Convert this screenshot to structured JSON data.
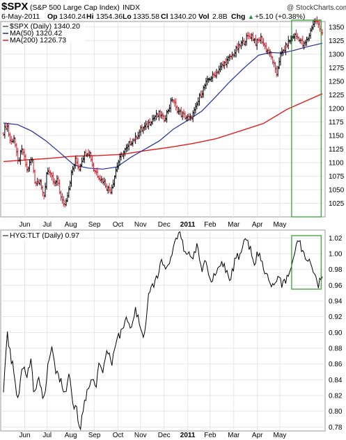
{
  "header": {
    "symbol": "$SPX",
    "name": "(S&P 500 Large Cap Index)",
    "exchange": "INDX",
    "date": "6-May-2011",
    "open_label": "Op",
    "open": "1340.24",
    "high_label": "Hi",
    "high": "1354.36",
    "low_label": "Lo",
    "low": "1335.58",
    "close_label": "Cl",
    "close": "1340.20",
    "volume_label": "Vol",
    "volume": "2.8B",
    "change_label": "Chg",
    "change": "+5.10 (+0.38%)",
    "change_arrow": "▲"
  },
  "watermark": "@ StockCharts.com",
  "colors": {
    "price_up": "#000000",
    "price_down": "#cc1f2f",
    "ma50": "#1f2a9e",
    "ma200": "#e41e1e",
    "ratio": "#000000",
    "highlight": "#2a9a2a",
    "grid": "#e6e6e6",
    "frame": "#999999"
  },
  "chart_data": [
    {
      "type": "line",
      "title": "$SPX (Daily) 1340.20",
      "series": [
        {
          "name": "$SPX (Daily) 1340.20",
          "style": "ohlc-bars",
          "points": [
            [
              0,
              1156
            ],
            [
              0.15,
              1170
            ],
            [
              0.3,
              1135
            ],
            [
              0.45,
              1148
            ],
            [
              0.6,
              1100
            ],
            [
              0.8,
              1125
            ],
            [
              1.0,
              1085
            ],
            [
              1.2,
              1110
            ],
            [
              1.35,
              1060
            ],
            [
              1.55,
              1070
            ],
            [
              1.7,
              1030
            ],
            [
              1.85,
              1090
            ],
            [
              2.0,
              1075
            ],
            [
              2.15,
              1060
            ],
            [
              2.3,
              1068
            ],
            [
              2.45,
              1030
            ],
            [
              2.6,
              1022
            ],
            [
              2.75,
              1050
            ],
            [
              2.9,
              1085
            ],
            [
              3.05,
              1105
            ],
            [
              3.2,
              1088
            ],
            [
              3.35,
              1110
            ],
            [
              3.5,
              1120
            ],
            [
              3.65,
              1118
            ],
            [
              3.8,
              1090
            ],
            [
              3.95,
              1080
            ],
            [
              4.1,
              1070
            ],
            [
              4.25,
              1065
            ],
            [
              4.4,
              1052
            ],
            [
              4.55,
              1048
            ],
            [
              4.7,
              1075
            ],
            [
              4.85,
              1100
            ],
            [
              5.0,
              1115
            ],
            [
              5.2,
              1125
            ],
            [
              5.4,
              1140
            ],
            [
              5.6,
              1145
            ],
            [
              5.8,
              1160
            ],
            [
              6.0,
              1165
            ],
            [
              6.2,
              1175
            ],
            [
              6.4,
              1185
            ],
            [
              6.6,
              1190
            ],
            [
              6.8,
              1180
            ],
            [
              7.0,
              1200
            ],
            [
              7.15,
              1220
            ],
            [
              7.3,
              1200
            ],
            [
              7.5,
              1190
            ],
            [
              7.7,
              1185
            ],
            [
              7.9,
              1180
            ],
            [
              8.1,
              1195
            ],
            [
              8.3,
              1220
            ],
            [
              8.5,
              1240
            ],
            [
              8.7,
              1255
            ],
            [
              8.9,
              1260
            ],
            [
              9.1,
              1270
            ],
            [
              9.3,
              1280
            ],
            [
              9.5,
              1290
            ],
            [
              9.7,
              1298
            ],
            [
              9.9,
              1310
            ],
            [
              10.1,
              1320
            ],
            [
              10.3,
              1330
            ],
            [
              10.5,
              1335
            ],
            [
              10.7,
              1320
            ],
            [
              10.9,
              1330
            ],
            [
              11.1,
              1310
            ],
            [
              11.3,
              1300
            ],
            [
              11.45,
              1280
            ],
            [
              11.55,
              1260
            ],
            [
              11.7,
              1295
            ],
            [
              11.9,
              1310
            ],
            [
              12.1,
              1325
            ],
            [
              12.3,
              1335
            ],
            [
              12.5,
              1330
            ],
            [
              12.7,
              1315
            ],
            [
              12.9,
              1330
            ],
            [
              13.1,
              1355
            ],
            [
              13.25,
              1362
            ],
            [
              13.4,
              1345
            ],
            [
              13.5,
              1340
            ]
          ]
        },
        {
          "name": "MA(50) 1320.42",
          "points": [
            [
              0,
              1173
            ],
            [
              0.6,
              1170
            ],
            [
              1.2,
              1158
            ],
            [
              1.8,
              1140
            ],
            [
              2.4,
              1118
            ],
            [
              3.0,
              1095
            ],
            [
              3.6,
              1090
            ],
            [
              4.2,
              1088
            ],
            [
              4.8,
              1092
            ],
            [
              5.4,
              1110
            ],
            [
              6.0,
              1125
            ],
            [
              6.6,
              1140
            ],
            [
              7.2,
              1162
            ],
            [
              7.8,
              1178
            ],
            [
              8.4,
              1195
            ],
            [
              9.0,
              1222
            ],
            [
              9.6,
              1250
            ],
            [
              10.2,
              1275
            ],
            [
              10.8,
              1298
            ],
            [
              11.3,
              1303
            ],
            [
              11.8,
              1302
            ],
            [
              12.3,
              1307
            ],
            [
              12.9,
              1314
            ],
            [
              13.5,
              1320
            ]
          ]
        },
        {
          "name": "MA(200) 1226.73",
          "points": [
            [
              0,
              1102
            ],
            [
              1.0,
              1105
            ],
            [
              2.0,
              1108
            ],
            [
              3.0,
              1112
            ],
            [
              4.0,
              1113
            ],
            [
              5.0,
              1115
            ],
            [
              6.0,
              1122
            ],
            [
              7.0,
              1128
            ],
            [
              8.0,
              1135
            ],
            [
              9.0,
              1144
            ],
            [
              10.0,
              1158
            ],
            [
              11.0,
              1172
            ],
            [
              12.0,
              1198
            ],
            [
              13.5,
              1227
            ]
          ]
        }
      ],
      "y_range": [
        1000,
        1360
      ],
      "y_ticks": [
        1025,
        1050,
        1075,
        1100,
        1125,
        1150,
        1175,
        1200,
        1225,
        1250,
        1275,
        1300,
        1325,
        1350
      ],
      "x_tick_labels": [
        "Jun",
        "Jul",
        "Aug",
        "Sep",
        "Oct",
        "Nov",
        "Dec",
        "2011",
        "Feb",
        "Mar",
        "Apr",
        "May"
      ],
      "x_tick_positions": [
        0.9,
        1.85,
        2.85,
        3.85,
        4.85,
        5.8,
        6.8,
        7.8,
        8.75,
        9.75,
        10.75,
        11.7
      ],
      "grid": true,
      "legend_position": "top-left"
    },
    {
      "type": "line",
      "title": "HYG:TLT (Daily) 0.97",
      "series": [
        {
          "name": "HYG:TLT (Daily) 0.97",
          "points": [
            [
              0,
              0.83
            ],
            [
              0.15,
              0.9
            ],
            [
              0.3,
              0.87
            ],
            [
              0.45,
              0.85
            ],
            [
              0.6,
              0.81
            ],
            [
              0.8,
              0.86
            ],
            [
              1.0,
              0.84
            ],
            [
              1.15,
              0.87
            ],
            [
              1.3,
              0.82
            ],
            [
              1.5,
              0.84
            ],
            [
              1.7,
              0.81
            ],
            [
              1.9,
              0.86
            ],
            [
              2.05,
              0.88
            ],
            [
              2.2,
              0.85
            ],
            [
              2.4,
              0.84
            ],
            [
              2.6,
              0.82
            ],
            [
              2.8,
              0.85
            ],
            [
              2.95,
              0.81
            ],
            [
              3.1,
              0.8
            ],
            [
              3.25,
              0.78
            ],
            [
              3.35,
              0.8
            ],
            [
              3.5,
              0.82
            ],
            [
              3.7,
              0.84
            ],
            [
              3.9,
              0.83
            ],
            [
              4.05,
              0.86
            ],
            [
              4.2,
              0.85
            ],
            [
              4.4,
              0.88
            ],
            [
              4.6,
              0.86
            ],
            [
              4.8,
              0.89
            ],
            [
              5.0,
              0.9
            ],
            [
              5.2,
              0.92
            ],
            [
              5.4,
              0.9
            ],
            [
              5.6,
              0.93
            ],
            [
              5.8,
              0.91
            ],
            [
              5.95,
              0.89
            ],
            [
              6.1,
              0.94
            ],
            [
              6.3,
              0.96
            ],
            [
              6.5,
              0.97
            ],
            [
              6.7,
              0.99
            ],
            [
              6.9,
              0.98
            ],
            [
              7.1,
              1.0
            ],
            [
              7.3,
              1.02
            ],
            [
              7.45,
              1.03
            ],
            [
              7.6,
              1.01
            ],
            [
              7.8,
              1.0
            ],
            [
              8.0,
              0.99
            ],
            [
              8.2,
              1.01
            ],
            [
              8.4,
              0.98
            ],
            [
              8.6,
              0.99
            ],
            [
              8.8,
              0.96
            ],
            [
              9.0,
              0.98
            ],
            [
              9.2,
              0.99
            ],
            [
              9.4,
              0.98
            ],
            [
              9.6,
              0.97
            ],
            [
              9.8,
              0.99
            ],
            [
              10.0,
              1.0
            ],
            [
              10.2,
              1.02
            ],
            [
              10.4,
              1.01
            ],
            [
              10.6,
              0.99
            ],
            [
              10.8,
              1.0
            ],
            [
              11.0,
              0.98
            ],
            [
              11.2,
              0.97
            ],
            [
              11.4,
              0.96
            ],
            [
              11.6,
              0.97
            ],
            [
              11.8,
              0.96
            ],
            [
              12.0,
              0.97
            ],
            [
              12.2,
              0.99
            ],
            [
              12.5,
              1.02
            ],
            [
              12.7,
              1.0
            ],
            [
              12.9,
              0.99
            ],
            [
              13.1,
              0.98
            ],
            [
              13.3,
              0.96
            ],
            [
              13.5,
              0.97
            ]
          ]
        }
      ],
      "y_range": [
        0.775,
        1.03
      ],
      "y_ticks": [
        0.78,
        0.8,
        0.82,
        0.84,
        0.86,
        0.88,
        0.9,
        0.92,
        0.94,
        0.96,
        0.98,
        1.0,
        1.02
      ],
      "y_tick_labels": [
        "0.78",
        "0.80",
        "0.82",
        "0.84",
        "0.86",
        "0.88",
        "0.90",
        "0.92",
        "0.94",
        "0.96",
        "0.98",
        "1.00",
        "1.02"
      ],
      "x_tick_labels": [
        "Jun",
        "Jul",
        "Aug",
        "Sep",
        "Oct",
        "Nov",
        "Dec",
        "2011",
        "Feb",
        "Mar",
        "Apr",
        "May"
      ],
      "x_tick_positions": [
        0.9,
        1.85,
        2.85,
        3.85,
        4.85,
        5.8,
        6.8,
        7.8,
        8.75,
        9.75,
        10.75,
        11.7
      ],
      "x_range": [
        0,
        13.5
      ],
      "grid": true,
      "legend_position": "top-left"
    }
  ],
  "highlight": {
    "x_start": 12.2,
    "x_end": 13.45
  }
}
